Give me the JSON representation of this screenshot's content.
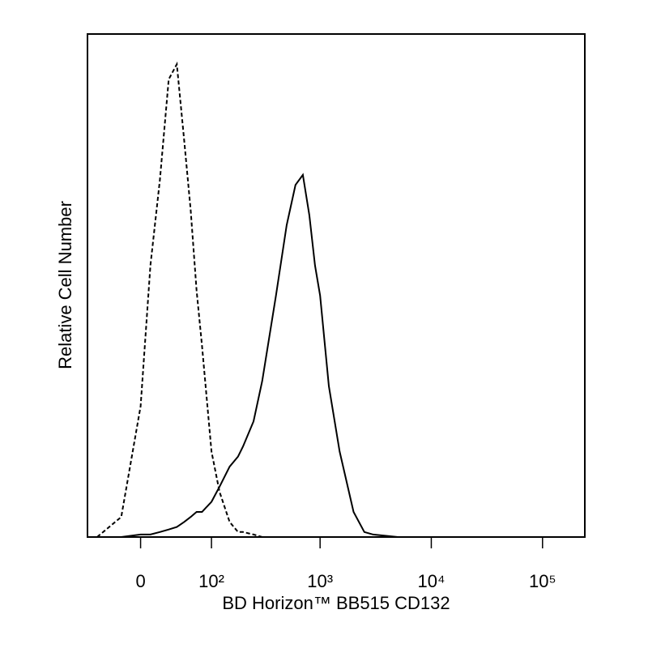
{
  "chart_data": {
    "type": "line",
    "xlabel": "BD Horizon™ BB515 CD132",
    "ylabel": "Relative Cell Number",
    "xscale": "biexponential",
    "xlim": [
      -65,
      240000
    ],
    "xticks": [
      0,
      {
        "value": 100,
        "label": "10²"
      },
      {
        "value": 1000,
        "label": "10³"
      },
      {
        "value": 10000,
        "label": "10⁴"
      },
      {
        "value": 100000,
        "label": "10⁵"
      }
    ],
    "ylim": [
      0,
      100
    ],
    "x": [
      -50,
      -20,
      0,
      10,
      20,
      30,
      40,
      50,
      60,
      70,
      80,
      100,
      120,
      150,
      180,
      200,
      250,
      300,
      400,
      500,
      600,
      700,
      800,
      900,
      1000,
      1200,
      1500,
      2000,
      2500,
      3000,
      5000
    ],
    "series": [
      {
        "color": "#000000",
        "dashed": true,
        "values": [
          0,
          4,
          26,
          54,
          71,
          91,
          94,
          79,
          65,
          49,
          38,
          17,
          9,
          3,
          1,
          1,
          0.5,
          0,
          0,
          0,
          0,
          0,
          0,
          0,
          0,
          0,
          0,
          0,
          0,
          0,
          0
        ]
      },
      {
        "color": "#000000",
        "dashed": false,
        "values": [
          0,
          0,
          0.5,
          0.5,
          1,
          1.5,
          2,
          3,
          4,
          5,
          5,
          7,
          10,
          14,
          16,
          18,
          23,
          31,
          48,
          62,
          70,
          72,
          64,
          54,
          48,
          30,
          17,
          5,
          1,
          0.5,
          0
        ]
      }
    ]
  }
}
